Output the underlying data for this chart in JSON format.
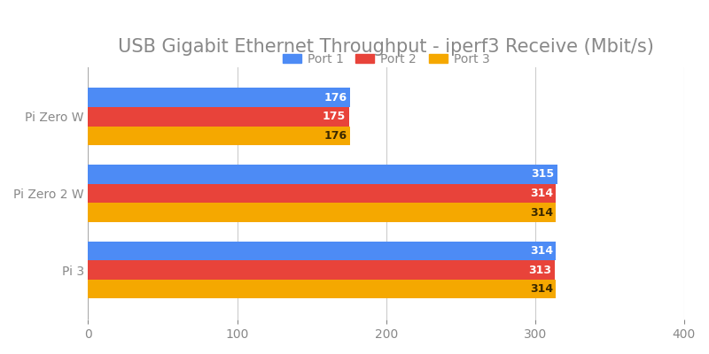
{
  "title": "USB Gigabit Ethernet Throughput - iperf3 Receive (Mbit/s)",
  "categories": [
    "Pi 3",
    "Pi Zero 2 W",
    "Pi Zero W"
  ],
  "series": [
    {
      "label": "Port 1",
      "color": "#4d8bf5",
      "values": [
        314,
        315,
        176
      ],
      "label_color": "white"
    },
    {
      "label": "Port 2",
      "color": "#e8433a",
      "values": [
        313,
        314,
        175
      ],
      "label_color": "white"
    },
    {
      "label": "Port 3",
      "color": "#f5a800",
      "values": [
        314,
        314,
        176
      ],
      "label_color": "#3a2800"
    }
  ],
  "xlim": [
    0,
    400
  ],
  "xticks": [
    0,
    100,
    200,
    300,
    400
  ],
  "background_color": "#ffffff",
  "grid_color": "#cccccc",
  "title_color": "#888888",
  "label_color": "#888888",
  "bar_height": 0.25,
  "bar_label_fontsize": 9,
  "title_fontsize": 15,
  "legend_fontsize": 10,
  "tick_fontsize": 10
}
